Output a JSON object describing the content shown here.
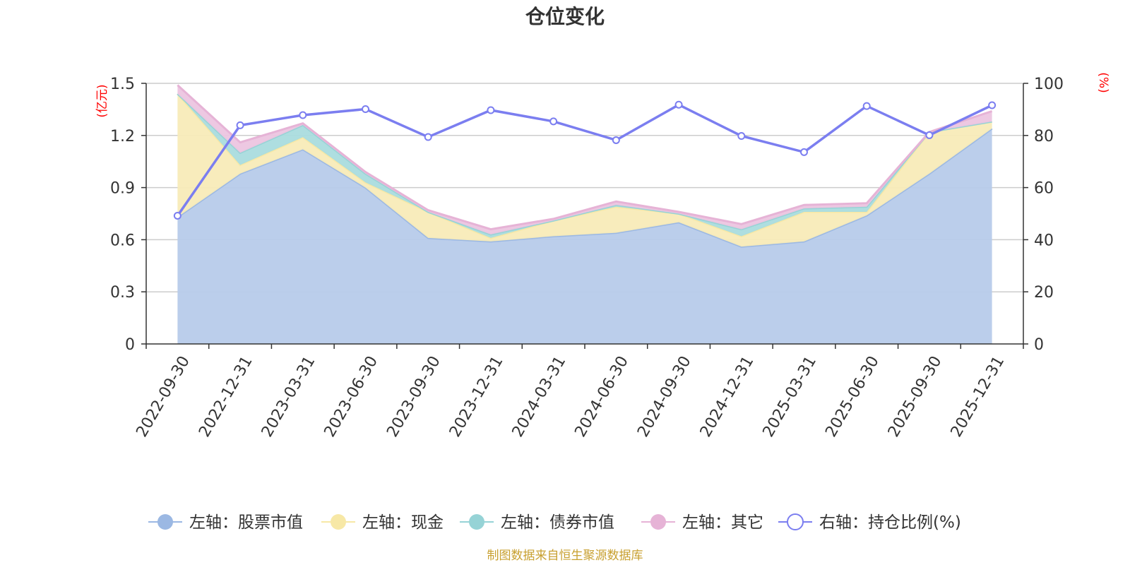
{
  "chart_data": {
    "type": "area",
    "title": "仓位变化",
    "left_unit": "(亿元)",
    "right_unit": "(%)",
    "categories": [
      "2022-09-30",
      "2022-12-31",
      "2023-03-31",
      "2023-06-30",
      "2023-09-30",
      "2023-12-31",
      "2024-03-31",
      "2024-06-30",
      "2024-09-30",
      "2024-12-31",
      "2025-03-31",
      "2025-06-30",
      "2025-09-30",
      "2025-12-31"
    ],
    "left_axis": {
      "min": 0,
      "max": 1.5,
      "ticks": [
        "0",
        "0.3",
        "0.6",
        "0.9",
        "1.2",
        "1.5"
      ]
    },
    "right_axis": {
      "min": 0,
      "max": 100,
      "ticks": [
        "0",
        "20",
        "40",
        "60",
        "80",
        "100"
      ]
    },
    "stacked_series": [
      {
        "name": "左轴：股票市值",
        "color": "#9bb8e3",
        "fill": "#b7cbea",
        "values": [
          0.73,
          0.98,
          1.12,
          0.9,
          0.61,
          0.59,
          0.62,
          0.64,
          0.7,
          0.56,
          0.59,
          0.74,
          0.98,
          1.24
        ]
      },
      {
        "name": "左轴：现金",
        "color": "#f7e8a6",
        "fill": "#f8ebb8",
        "values": [
          0.71,
          0.05,
          0.07,
          0.03,
          0.15,
          0.02,
          0.09,
          0.15,
          0.05,
          0.06,
          0.17,
          0.02,
          0.24,
          0.04
        ]
      },
      {
        "name": "左轴：债券市值",
        "color": "#96d3d6",
        "fill": "#aadcde",
        "values": [
          0.0,
          0.07,
          0.07,
          0.05,
          0.0,
          0.02,
          0.0,
          0.01,
          0.0,
          0.04,
          0.02,
          0.03,
          0.0,
          0.0
        ]
      },
      {
        "name": "左轴：其它",
        "color": "#e6b3d6",
        "fill": "#ecc5e0",
        "values": [
          0.05,
          0.06,
          0.01,
          0.01,
          0.01,
          0.03,
          0.01,
          0.02,
          0.01,
          0.03,
          0.02,
          0.02,
          0.0,
          0.06
        ]
      }
    ],
    "line_series": {
      "name": "右轴：持仓比例(%)",
      "color": "#7b7ef0",
      "values": [
        49.2,
        83.9,
        87.8,
        90.1,
        79.4,
        89.7,
        85.4,
        78.2,
        91.8,
        79.8,
        73.6,
        91.3,
        80.1,
        91.6
      ]
    }
  },
  "footer": "制图数据来自恒生聚源数据库"
}
